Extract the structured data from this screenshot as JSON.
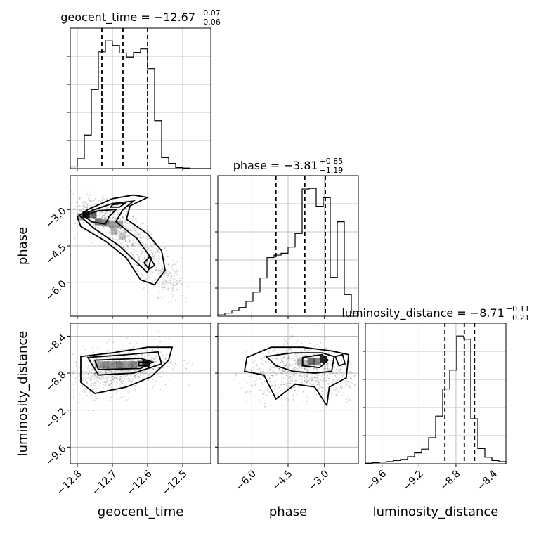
{
  "chart_data": {
    "type": "corner",
    "parameters": [
      "geocent_time",
      "phase",
      "luminosity_distance"
    ],
    "titles": [
      {
        "param": "geocent_time",
        "median": "-12.67",
        "plus": "+0.07",
        "minus": "-0.06"
      },
      {
        "param": "phase",
        "median": "-3.81",
        "plus": "+0.85",
        "minus": "-1.19"
      },
      {
        "param": "luminosity_distance",
        "median": "-8.71",
        "plus": "+0.11",
        "minus": "-0.21"
      }
    ],
    "ranges": {
      "geocent_time": [
        -12.82,
        -12.42
      ],
      "phase": [
        -7.4,
        -1.6
      ],
      "luminosity_distance": [
        -9.78,
        -8.26
      ]
    },
    "ticks": {
      "geocent_time": {
        "values": [
          -12.8,
          -12.7,
          -12.6,
          -12.5
        ],
        "labels": [
          "−12.8",
          "−12.7",
          "−12.6",
          "−12.5"
        ]
      },
      "phase": {
        "values": [
          -6.0,
          -4.5,
          -3.0
        ],
        "labels": [
          "−6.0",
          "−4.5",
          "−3.0"
        ]
      },
      "luminosity_distance": {
        "values": [
          -9.6,
          -9.2,
          -8.8,
          -8.4
        ],
        "labels": [
          "−9.6",
          "−9.2",
          "−8.8",
          "−8.4"
        ]
      }
    },
    "histograms": {
      "geocent_time": {
        "edges": [
          -12.82,
          -12.8,
          -12.78,
          -12.76,
          -12.74,
          -12.72,
          -12.7,
          -12.68,
          -12.66,
          -12.64,
          -12.62,
          -12.6,
          -12.58,
          -12.56,
          -12.54,
          -12.52,
          -12.5,
          -12.48,
          -12.46,
          -12.44,
          -12.42
        ],
        "counts": [
          3,
          17,
          58,
          137,
          202,
          221,
          213,
          200,
          193,
          201,
          207,
          173,
          83,
          19,
          9,
          2,
          1,
          0,
          0,
          0
        ],
        "quantiles": [
          -12.73,
          -12.67,
          -12.6
        ]
      },
      "phase": {
        "edges": [
          -7.4,
          -7.11,
          -6.82,
          -6.53,
          -6.24,
          -5.95,
          -5.66,
          -5.37,
          -5.08,
          -4.79,
          -4.5,
          -4.21,
          -3.92,
          -3.63,
          -3.34,
          -3.05,
          -2.76,
          -2.47,
          -2.18,
          -1.89,
          -1.6
        ],
        "counts": [
          2,
          5,
          9,
          14,
          24,
          39,
          62,
          95,
          99,
          102,
          112,
          134,
          206,
          207,
          178,
          192,
          63,
          153,
          35,
          5
        ],
        "quantiles": [
          -5.0,
          -3.81,
          -2.96
        ]
      },
      "luminosity_distance": {
        "edges": [
          -9.78,
          -9.704,
          -9.628,
          -9.552,
          -9.476,
          -9.4,
          -9.324,
          -9.248,
          -9.172,
          -9.096,
          -9.02,
          -8.944,
          -8.868,
          -8.792,
          -8.716,
          -8.64,
          -8.564,
          -8.488,
          -8.412,
          -8.336,
          -8.26
        ],
        "counts": [
          1,
          2,
          3,
          4,
          6,
          8,
          13,
          20,
          27,
          48,
          88,
          138,
          173,
          236,
          230,
          83,
          28,
          12,
          6,
          4
        ],
        "quantiles": [
          -8.92,
          -8.71,
          -8.6
        ]
      }
    },
    "joint_2d": [
      {
        "x": "geocent_time",
        "y": "phase",
        "contours": "4 levels",
        "density_peak": [
          -12.77,
          -3.2
        ]
      },
      {
        "x": "geocent_time",
        "y": "luminosity_distance",
        "contours": "4 levels",
        "density_peak": [
          -12.6,
          -8.71
        ]
      },
      {
        "x": "phase",
        "y": "luminosity_distance",
        "contours": "4 levels",
        "density_peak": [
          -3.0,
          -8.65
        ]
      }
    ],
    "grid": true
  }
}
